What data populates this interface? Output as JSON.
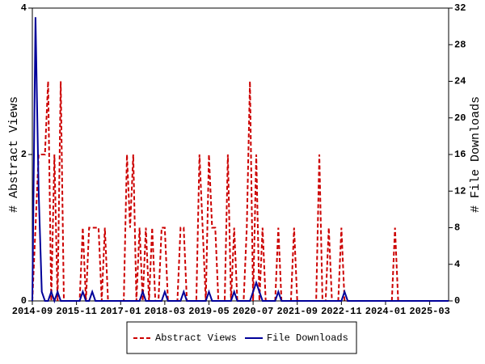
{
  "chart_data": {
    "type": "line",
    "x": [
      "2014-09",
      "2014-10",
      "2014-11",
      "2014-12",
      "2015-01",
      "2015-02",
      "2015-03",
      "2015-04",
      "2015-05",
      "2015-06",
      "2015-07",
      "2015-08",
      "2015-09",
      "2015-10",
      "2015-11",
      "2015-12",
      "2016-01",
      "2016-02",
      "2016-03",
      "2016-04",
      "2016-05",
      "2016-06",
      "2016-07",
      "2016-08",
      "2016-09",
      "2016-10",
      "2016-11",
      "2016-12",
      "2017-01",
      "2017-02",
      "2017-03",
      "2017-04",
      "2017-05",
      "2017-06",
      "2017-07",
      "2017-08",
      "2017-09",
      "2017-10",
      "2017-11",
      "2017-12",
      "2018-01",
      "2018-02",
      "2018-03",
      "2018-04",
      "2018-05",
      "2018-06",
      "2018-07",
      "2018-08",
      "2018-09",
      "2018-10",
      "2018-11",
      "2018-12",
      "2019-01",
      "2019-02",
      "2019-03",
      "2019-04",
      "2019-05",
      "2019-06",
      "2019-07",
      "2019-08",
      "2019-09",
      "2019-10",
      "2019-11",
      "2019-12",
      "2020-01",
      "2020-02",
      "2020-03",
      "2020-04",
      "2020-05",
      "2020-06",
      "2020-07",
      "2020-08",
      "2020-09",
      "2020-10",
      "2020-11",
      "2020-12",
      "2021-01",
      "2021-02",
      "2021-03",
      "2021-04",
      "2021-05",
      "2021-06",
      "2021-07",
      "2021-08",
      "2021-09",
      "2021-10",
      "2021-11",
      "2021-12",
      "2022-01",
      "2022-02",
      "2022-03",
      "2022-04",
      "2022-05",
      "2022-06",
      "2022-07",
      "2022-08",
      "2022-09",
      "2022-10",
      "2022-11",
      "2022-12",
      "2023-01",
      "2023-02",
      "2023-03",
      "2023-04",
      "2023-05",
      "2023-06",
      "2023-07",
      "2023-08",
      "2023-09",
      "2023-10",
      "2023-11",
      "2023-12",
      "2024-01",
      "2024-02",
      "2024-03",
      "2024-04",
      "2024-05",
      "2024-06",
      "2024-07",
      "2024-08",
      "2024-09",
      "2024-10",
      "2024-11",
      "2024-12",
      "2025-01",
      "2025-02",
      "2025-03",
      "2025-04",
      "2025-05",
      "2025-06",
      "2025-07",
      "2025-08",
      "2025-09"
    ],
    "series": [
      {
        "name": "Abstract Views",
        "color": "#cc0000",
        "line_style": "dashed",
        "values": [
          0,
          1,
          2,
          2,
          2,
          3,
          0,
          2,
          0,
          3,
          0,
          0,
          0,
          0,
          0,
          0,
          1,
          0,
          1,
          1,
          1,
          1,
          0,
          1,
          0,
          0,
          0,
          0,
          0,
          0,
          2,
          1,
          2,
          0,
          1,
          0,
          1,
          0,
          1,
          0,
          0,
          1,
          1,
          0,
          0,
          0,
          0,
          1,
          1,
          0,
          0,
          0,
          0,
          2,
          1,
          0,
          2,
          1,
          1,
          0,
          0,
          0,
          2,
          0,
          1,
          0,
          0,
          0,
          1,
          3,
          0,
          2,
          0,
          1,
          0,
          0,
          0,
          0,
          1,
          0,
          0,
          0,
          0,
          1,
          0,
          0,
          0,
          0,
          0,
          0,
          0,
          2,
          0,
          0,
          1,
          0,
          0,
          0,
          1,
          0,
          0,
          0,
          0,
          0,
          0,
          0,
          0,
          0,
          0,
          0,
          0,
          0,
          0,
          0,
          0,
          1,
          0,
          0,
          0,
          0,
          0,
          0,
          0,
          0,
          0,
          0,
          0,
          0,
          0,
          0,
          0,
          0,
          0
        ]
      },
      {
        "name": "File Downloads",
        "color": "#000099",
        "line_style": "solid",
        "axis": "y2",
        "values": [
          0,
          31,
          12,
          1,
          0,
          0,
          1,
          0,
          1,
          0,
          0,
          0,
          0,
          0,
          0,
          0,
          1,
          0,
          0,
          1,
          0,
          0,
          0,
          0,
          0,
          0,
          0,
          0,
          0,
          0,
          0,
          0,
          0,
          0,
          0,
          1,
          0,
          0,
          0,
          0,
          0,
          0,
          1,
          0,
          0,
          0,
          0,
          0,
          1,
          0,
          0,
          0,
          0,
          0,
          0,
          0,
          1,
          0,
          0,
          0,
          0,
          0,
          0,
          0,
          1,
          0,
          0,
          0,
          0,
          0,
          1,
          2,
          1,
          0,
          0,
          0,
          0,
          0,
          1,
          0,
          0,
          0,
          0,
          0,
          0,
          0,
          0,
          0,
          0,
          0,
          0,
          0,
          0,
          0,
          0,
          0,
          0,
          0,
          0,
          1,
          0,
          0,
          0,
          0,
          0,
          0,
          0,
          0,
          0,
          0,
          0,
          0,
          0,
          0,
          0,
          0,
          0,
          0,
          0,
          0,
          0,
          0,
          0,
          0,
          0,
          0,
          0,
          0,
          0,
          0,
          0,
          0,
          0
        ]
      }
    ],
    "xlim": [
      "2014-09",
      "2025-09"
    ],
    "xticks": [
      "2014-09",
      "2015-11",
      "2017-01",
      "2018-03",
      "2019-05",
      "2020-07",
      "2021-09",
      "2022-11",
      "2024-01",
      "2025-03"
    ],
    "ylabel": "# Abstract Views",
    "ylim": [
      0,
      4
    ],
    "yticks": [
      0,
      2,
      4
    ],
    "y2label": "# File Downloads",
    "y2lim": [
      0,
      32
    ],
    "y2ticks": [
      0,
      4,
      8,
      12,
      16,
      20,
      24,
      28,
      32
    ],
    "legend": "bottom"
  }
}
